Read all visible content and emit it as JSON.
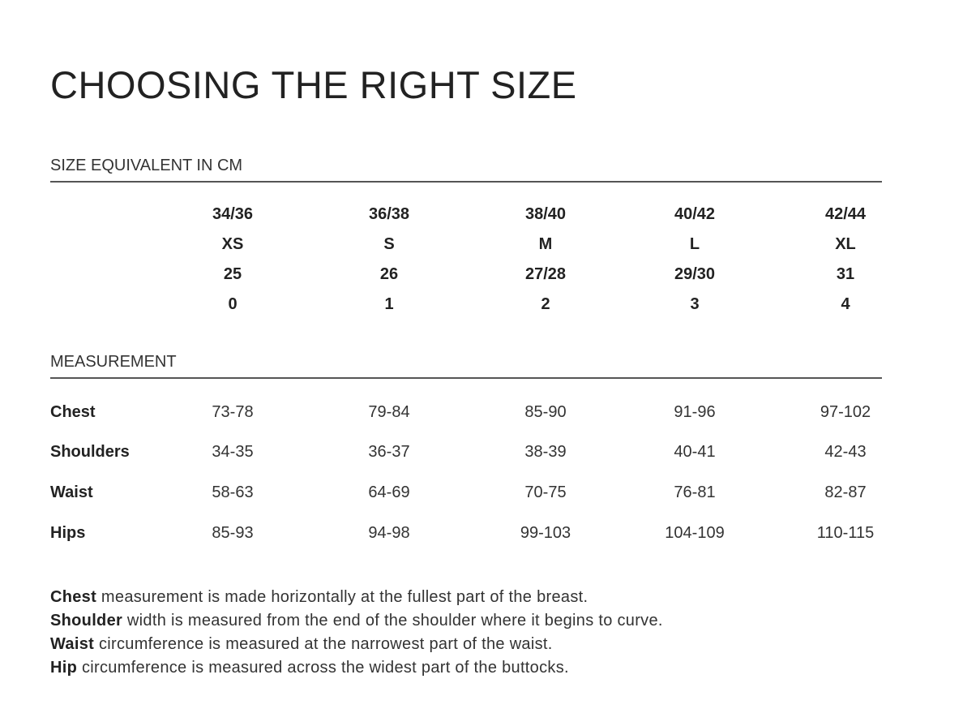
{
  "title": "CHOOSING THE RIGHT SIZE",
  "size_section": {
    "heading": "SIZE EQUIVALENT IN CM",
    "rows": [
      [
        "34/36",
        "36/38",
        "38/40",
        "40/42",
        "42/44"
      ],
      [
        "XS",
        "S",
        "M",
        "L",
        "XL"
      ],
      [
        "25",
        "26",
        "27/28",
        "29/30",
        "31"
      ],
      [
        "0",
        "1",
        "2",
        "3",
        "4"
      ]
    ]
  },
  "measurement_section": {
    "heading": "MEASUREMENT",
    "rows": [
      {
        "label": "Chest",
        "values": [
          "73-78",
          "79-84",
          "85-90",
          "91-96",
          "97-102"
        ]
      },
      {
        "label": "Shoulders",
        "values": [
          "34-35",
          "36-37",
          "38-39",
          "40-41",
          "42-43"
        ]
      },
      {
        "label": "Waist",
        "values": [
          "58-63",
          "64-69",
          "70-75",
          "76-81",
          "82-87"
        ]
      },
      {
        "label": "Hips",
        "values": [
          "85-93",
          "94-98",
          "99-103",
          "104-109",
          "110-115"
        ]
      }
    ]
  },
  "notes": [
    {
      "term": "Chest",
      "text": " measurement is made horizontally at the fullest part of the breast."
    },
    {
      "term": "Shoulder",
      "text": " width is measured from the end of the shoulder where it begins to curve."
    },
    {
      "term": "Waist",
      "text": " circumference is measured at the narrowest part of the waist."
    },
    {
      "term": "Hip",
      "text": " circumference is measured across the widest part of the buttocks."
    }
  ]
}
